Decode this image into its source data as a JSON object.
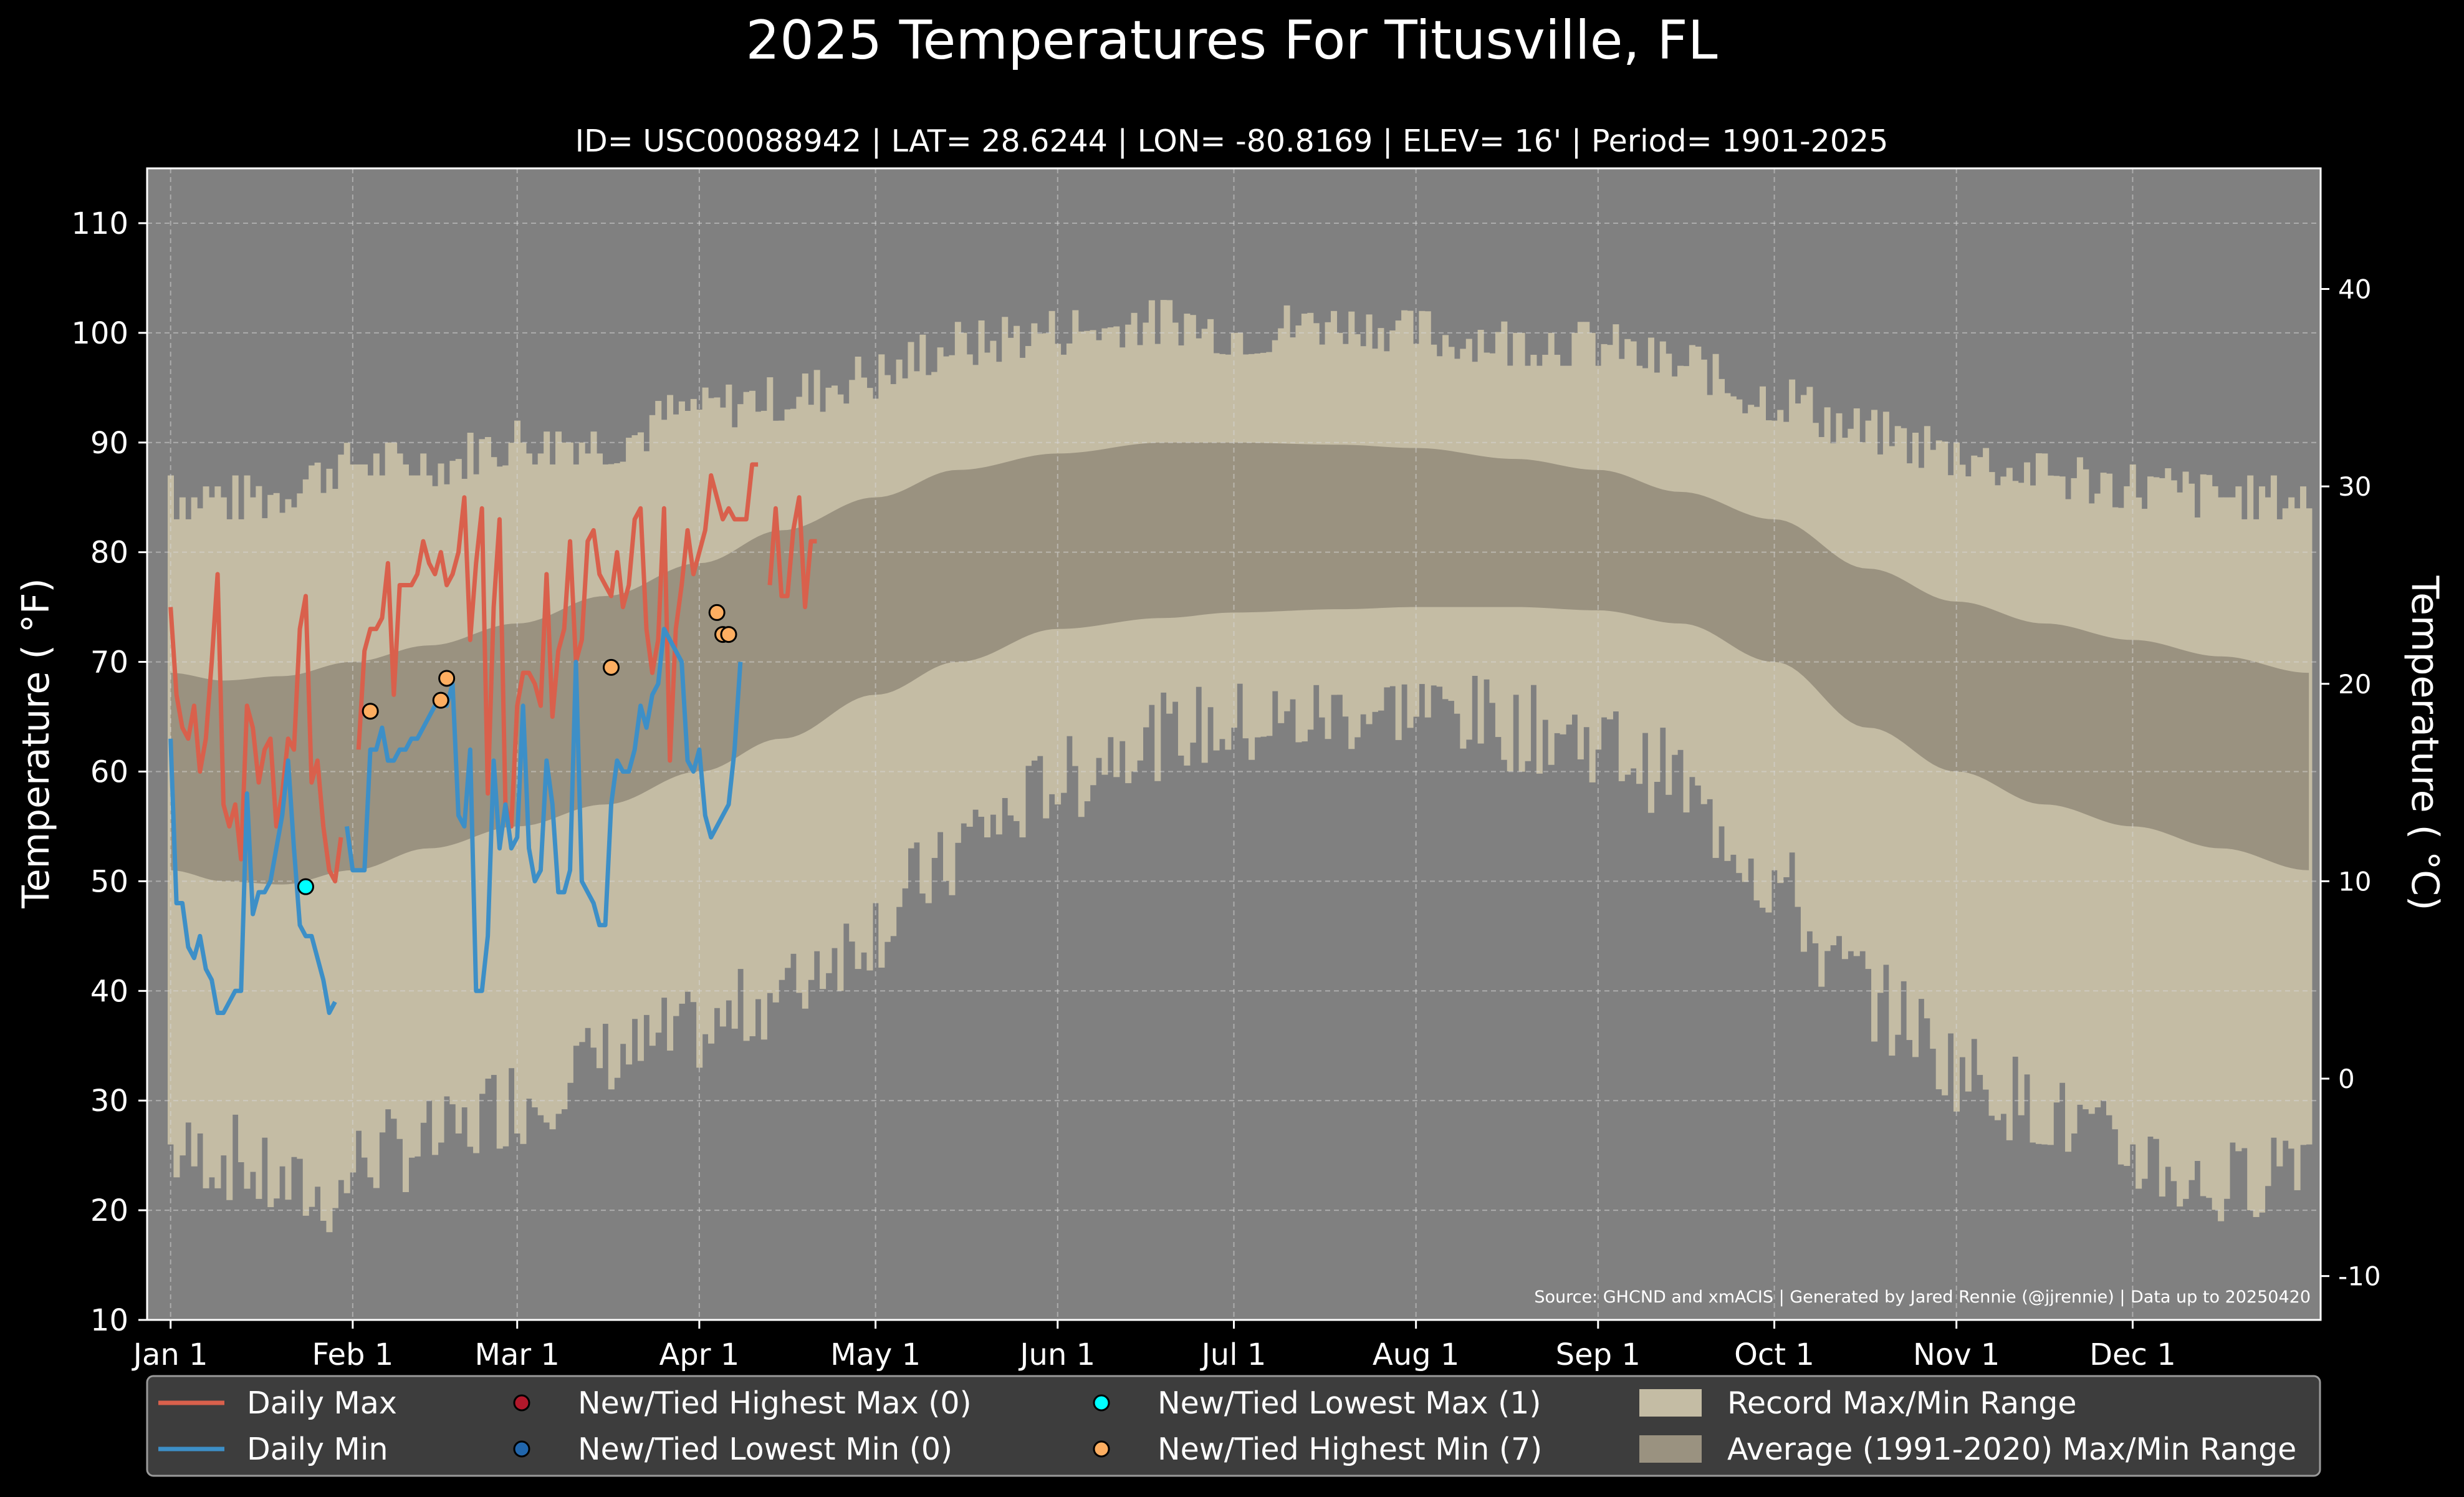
{
  "chart_data": {
    "type": "line",
    "title": "2025 Temperatures For Titusville, FL",
    "subtitle": "ID= USC00088942 | LAT= 28.6244 | LON= -80.8169 | ELEV= 16' | Period= 1901-2025",
    "ylabel": "Temperature ( $^\\circ$F)",
    "ylabel_display": "Temperature ( °F)",
    "ylabel2_display": "Temperature ( °C)",
    "ylim": [
      10,
      115
    ],
    "y_ticks": [
      10,
      20,
      30,
      40,
      50,
      60,
      70,
      80,
      90,
      100,
      110
    ],
    "y2_ticks": [
      -10,
      0,
      10,
      20,
      30,
      40
    ],
    "xlim_days": [
      -3,
      367
    ],
    "x_ticks": [
      {
        "label": "Jan 1",
        "day": 1
      },
      {
        "label": "Feb 1",
        "day": 32
      },
      {
        "label": "Mar 1",
        "day": 60
      },
      {
        "label": "Apr 1",
        "day": 91
      },
      {
        "label": "May 1",
        "day": 121
      },
      {
        "label": "Jun 1",
        "day": 152
      },
      {
        "label": "Jul 1",
        "day": 182
      },
      {
        "label": "Aug 1",
        "day": 213
      },
      {
        "label": "Sep 1",
        "day": 244
      },
      {
        "label": "Oct 1",
        "day": 274
      },
      {
        "label": "Nov 1",
        "day": 305
      },
      {
        "label": "Dec 1",
        "day": 335
      }
    ],
    "grid": true,
    "source": "Source: GHCND and xmACIS | Generated by Jared Rennie (@jjrennie) | Data up to 20250420",
    "colors": {
      "background": "#000000",
      "plot_bg": "#808080",
      "record": "#c4bca4",
      "average": "#9a9280",
      "daily_max": "#d9604c",
      "daily_min": "#3d8fc7",
      "highest_max": "#b2182b",
      "lowest_min": "#2166ac",
      "lowest_max": "#00ffff",
      "highest_min": "#fdae61",
      "legend_bg": "#3d3d3d"
    },
    "record_max_anchors": [
      [
        1,
        85
      ],
      [
        15,
        85
      ],
      [
        32,
        88
      ],
      [
        45,
        88
      ],
      [
        60,
        90
      ],
      [
        75,
        90
      ],
      [
        91,
        93
      ],
      [
        105,
        94
      ],
      [
        121,
        96
      ],
      [
        135,
        99
      ],
      [
        152,
        100
      ],
      [
        170,
        101
      ],
      [
        182,
        100
      ],
      [
        200,
        101
      ],
      [
        213,
        100
      ],
      [
        230,
        99
      ],
      [
        244,
        99
      ],
      [
        258,
        97
      ],
      [
        274,
        94
      ],
      [
        290,
        91
      ],
      [
        305,
        89
      ],
      [
        320,
        87
      ],
      [
        335,
        86
      ],
      [
        350,
        85
      ],
      [
        365,
        85
      ]
    ],
    "record_min_anchors": [
      [
        1,
        25
      ],
      [
        10,
        25
      ],
      [
        20,
        22
      ],
      [
        28,
        21
      ],
      [
        35,
        25
      ],
      [
        45,
        26
      ],
      [
        60,
        30
      ],
      [
        75,
        34
      ],
      [
        91,
        36
      ],
      [
        105,
        40
      ],
      [
        115,
        44
      ],
      [
        121,
        46
      ],
      [
        130,
        50
      ],
      [
        140,
        55
      ],
      [
        152,
        59
      ],
      [
        165,
        63
      ],
      [
        182,
        64
      ],
      [
        200,
        65
      ],
      [
        213,
        66
      ],
      [
        230,
        64
      ],
      [
        244,
        63
      ],
      [
        255,
        60
      ],
      [
        265,
        55
      ],
      [
        274,
        50
      ],
      [
        285,
        42
      ],
      [
        295,
        38
      ],
      [
        305,
        33
      ],
      [
        320,
        29
      ],
      [
        335,
        25
      ],
      [
        350,
        22
      ],
      [
        365,
        26
      ]
    ],
    "avg_max_anchors": [
      [
        1,
        69
      ],
      [
        10,
        68.3
      ],
      [
        20,
        68.7
      ],
      [
        32,
        70
      ],
      [
        45,
        71.5
      ],
      [
        60,
        73.5
      ],
      [
        75,
        76
      ],
      [
        91,
        79
      ],
      [
        105,
        82
      ],
      [
        121,
        85
      ],
      [
        135,
        87.5
      ],
      [
        152,
        89
      ],
      [
        170,
        90
      ],
      [
        182,
        90
      ],
      [
        200,
        89.8
      ],
      [
        213,
        89.5
      ],
      [
        230,
        88.5
      ],
      [
        244,
        87.5
      ],
      [
        258,
        85.5
      ],
      [
        274,
        83
      ],
      [
        290,
        78.5
      ],
      [
        305,
        75.5
      ],
      [
        320,
        73.5
      ],
      [
        335,
        72
      ],
      [
        350,
        70.5
      ],
      [
        365,
        69
      ]
    ],
    "avg_min_anchors": [
      [
        1,
        51
      ],
      [
        10,
        50
      ],
      [
        20,
        49.7
      ],
      [
        32,
        51
      ],
      [
        45,
        53
      ],
      [
        60,
        55
      ],
      [
        75,
        57
      ],
      [
        91,
        60
      ],
      [
        105,
        63
      ],
      [
        121,
        67
      ],
      [
        135,
        70
      ],
      [
        152,
        73
      ],
      [
        170,
        74
      ],
      [
        182,
        74.5
      ],
      [
        200,
        74.8
      ],
      [
        213,
        75
      ],
      [
        230,
        75
      ],
      [
        244,
        74.7
      ],
      [
        258,
        73.5
      ],
      [
        274,
        70
      ],
      [
        290,
        64
      ],
      [
        305,
        60
      ],
      [
        320,
        57
      ],
      [
        335,
        55
      ],
      [
        350,
        53
      ],
      [
        365,
        51
      ]
    ],
    "series": [
      {
        "name": "Daily Max",
        "values": [
          [
            1,
            75
          ],
          [
            2,
            67
          ],
          [
            3,
            64
          ],
          [
            4,
            63
          ],
          [
            5,
            66
          ],
          [
            6,
            60
          ],
          [
            7,
            63
          ],
          [
            8,
            70
          ],
          [
            9,
            78
          ],
          [
            10,
            57
          ],
          [
            11,
            55
          ],
          [
            12,
            57
          ],
          [
            13,
            52
          ],
          [
            14,
            66
          ],
          [
            15,
            64
          ],
          [
            16,
            59
          ],
          [
            17,
            62
          ],
          [
            18,
            63
          ],
          [
            19,
            55
          ],
          [
            20,
            58
          ],
          [
            21,
            63
          ],
          [
            22,
            62
          ],
          [
            23,
            73
          ],
          [
            24,
            76
          ],
          [
            25,
            59
          ],
          [
            26,
            61
          ],
          [
            27,
            55
          ],
          [
            28,
            51
          ],
          [
            29,
            50
          ],
          [
            30,
            54
          ],
          [
            null,
            null
          ],
          [
            33,
            62
          ],
          [
            34,
            71
          ],
          [
            35,
            73
          ],
          [
            36,
            73
          ],
          [
            37,
            74
          ],
          [
            38,
            79
          ],
          [
            39,
            67
          ],
          [
            40,
            77
          ],
          [
            41,
            77
          ],
          [
            42,
            77
          ],
          [
            43,
            78
          ],
          [
            44,
            81
          ],
          [
            45,
            79
          ],
          [
            46,
            78
          ],
          [
            47,
            80
          ],
          [
            48,
            77
          ],
          [
            49,
            78
          ],
          [
            50,
            80
          ],
          [
            51,
            85
          ],
          [
            52,
            72
          ],
          [
            53,
            79
          ],
          [
            54,
            84
          ],
          [
            55,
            58
          ],
          [
            56,
            75
          ],
          [
            57,
            83
          ],
          [
            58,
            57
          ],
          [
            59,
            55
          ],
          [
            60,
            66
          ],
          [
            61,
            69
          ],
          [
            62,
            69
          ],
          [
            63,
            68
          ],
          [
            64,
            66
          ],
          [
            65,
            78
          ],
          [
            66,
            65
          ],
          [
            67,
            71
          ],
          [
            68,
            73
          ],
          [
            69,
            81
          ],
          [
            70,
            70
          ],
          [
            71,
            72
          ],
          [
            72,
            81
          ],
          [
            73,
            82
          ],
          [
            74,
            78
          ],
          [
            75,
            77
          ],
          [
            76,
            76
          ],
          [
            77,
            80
          ],
          [
            78,
            75
          ],
          [
            79,
            77
          ],
          [
            80,
            83
          ],
          [
            81,
            84
          ],
          [
            82,
            73
          ],
          [
            83,
            69
          ],
          [
            84,
            72
          ],
          [
            85,
            84
          ],
          [
            86,
            61
          ],
          [
            87,
            73
          ],
          [
            88,
            77
          ],
          [
            89,
            82
          ],
          [
            90,
            78
          ],
          [
            91,
            80
          ],
          [
            92,
            82
          ],
          [
            93,
            87
          ],
          [
            94,
            85
          ],
          [
            95,
            83
          ],
          [
            96,
            84
          ],
          [
            97,
            83
          ],
          [
            98,
            83
          ],
          [
            99,
            83
          ],
          [
            100,
            88
          ],
          [
            101,
            88
          ],
          [
            null,
            null
          ],
          [
            103,
            77
          ],
          [
            104,
            84
          ],
          [
            105,
            76
          ],
          [
            106,
            76
          ],
          [
            107,
            82
          ],
          [
            108,
            85
          ],
          [
            109,
            75
          ],
          [
            110,
            81
          ],
          [
            111,
            81
          ]
        ]
      },
      {
        "name": "Daily Min",
        "values": [
          [
            1,
            63
          ],
          [
            2,
            48
          ],
          [
            3,
            48
          ],
          [
            4,
            44
          ],
          [
            5,
            43
          ],
          [
            6,
            45
          ],
          [
            7,
            42
          ],
          [
            8,
            41
          ],
          [
            9,
            38
          ],
          [
            10,
            38
          ],
          [
            11,
            39
          ],
          [
            12,
            40
          ],
          [
            13,
            40
          ],
          [
            14,
            58
          ],
          [
            15,
            47
          ],
          [
            16,
            49
          ],
          [
            17,
            49
          ],
          [
            18,
            50
          ],
          [
            19,
            53
          ],
          [
            20,
            56
          ],
          [
            21,
            61
          ],
          [
            22,
            53
          ],
          [
            23,
            46
          ],
          [
            24,
            45
          ],
          [
            25,
            45
          ],
          [
            26,
            43
          ],
          [
            27,
            41
          ],
          [
            28,
            38
          ],
          [
            29,
            39
          ],
          [
            null,
            null
          ],
          [
            31,
            55
          ],
          [
            32,
            51
          ],
          [
            33,
            51
          ],
          [
            34,
            51
          ],
          [
            35,
            62
          ],
          [
            36,
            62
          ],
          [
            37,
            64
          ],
          [
            38,
            61
          ],
          [
            39,
            61
          ],
          [
            40,
            62
          ],
          [
            41,
            62
          ],
          [
            42,
            63
          ],
          [
            43,
            63
          ],
          [
            44,
            64
          ],
          [
            45,
            65
          ],
          [
            46,
            66
          ],
          [
            47,
            67
          ],
          [
            48,
            66
          ],
          [
            49,
            68
          ],
          [
            50,
            56
          ],
          [
            51,
            55
          ],
          [
            52,
            62
          ],
          [
            53,
            40
          ],
          [
            54,
            40
          ],
          [
            55,
            45
          ],
          [
            56,
            61
          ],
          [
            57,
            53
          ],
          [
            58,
            57
          ],
          [
            59,
            53
          ],
          [
            60,
            54
          ],
          [
            61,
            66
          ],
          [
            62,
            53
          ],
          [
            63,
            50
          ],
          [
            64,
            51
          ],
          [
            65,
            61
          ],
          [
            66,
            57
          ],
          [
            67,
            49
          ],
          [
            68,
            49
          ],
          [
            69,
            51
          ],
          [
            70,
            70
          ],
          [
            71,
            50
          ],
          [
            72,
            49
          ],
          [
            73,
            48
          ],
          [
            74,
            46
          ],
          [
            75,
            46
          ],
          [
            76,
            57
          ],
          [
            77,
            61
          ],
          [
            78,
            60
          ],
          [
            79,
            60
          ],
          [
            80,
            62
          ],
          [
            81,
            66
          ],
          [
            82,
            64
          ],
          [
            83,
            67
          ],
          [
            84,
            68
          ],
          [
            85,
            73
          ],
          [
            86,
            72
          ],
          [
            87,
            71
          ],
          [
            88,
            70
          ],
          [
            89,
            61
          ],
          [
            90,
            60
          ],
          [
            91,
            62
          ],
          [
            92,
            56
          ],
          [
            93,
            54
          ],
          [
            94,
            55
          ],
          [
            95,
            56
          ],
          [
            96,
            57
          ],
          [
            97,
            62
          ],
          [
            98,
            70
          ]
        ]
      }
    ],
    "highest_min_points": [
      [
        35,
        65.5
      ],
      [
        47,
        66.5
      ],
      [
        48,
        68.5
      ],
      [
        76,
        69.5
      ],
      [
        94,
        74.5
      ],
      [
        95,
        72.5
      ],
      [
        96,
        72.5
      ]
    ],
    "lowest_max_points": [
      [
        24,
        49.5
      ]
    ],
    "legend": [
      {
        "label": "Daily Max",
        "kind": "line",
        "color_key": "daily_max"
      },
      {
        "label": "New/Tied Highest Max (0)",
        "kind": "dot",
        "color_key": "highest_max"
      },
      {
        "label": "New/Tied Lowest Max (1)",
        "kind": "dot",
        "color_key": "lowest_max"
      },
      {
        "label": "Record Max/Min Range",
        "kind": "patch",
        "color_key": "record"
      },
      {
        "label": "Daily Min",
        "kind": "line",
        "color_key": "daily_min"
      },
      {
        "label": "New/Tied Lowest Min (0)",
        "kind": "dot",
        "color_key": "lowest_min"
      },
      {
        "label": "New/Tied Highest Min (7)",
        "kind": "dot",
        "color_key": "highest_min"
      },
      {
        "label": "Average (1991-2020) Max/Min Range",
        "kind": "patch",
        "color_key": "average"
      }
    ]
  }
}
